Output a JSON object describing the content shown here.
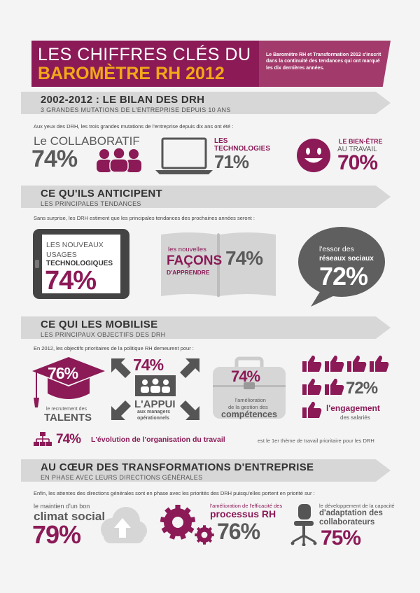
{
  "header": {
    "title_line1": "LES CHIFFRES CLÉS DU",
    "title_line2": "BAROMÈTRE RH 2012",
    "intro": "Le Baromètre RH et Transformation 2012 s'inscrit dans la continuité des tendances qui ont marqué les dix dernières années."
  },
  "bilan": {
    "title": "2002-2012 : LE BILAN DES DRH",
    "subtitle": "3 GRANDES MUTATIONS DE L'ENTREPRISE DEPUIS 10 ANS",
    "intro": "Aux yeux des DRH, les trois grandes mutations de l'entreprise depuis dix ans ont été :",
    "collab_label": "Le COLLABORATIF",
    "collab_value": "74%",
    "tech_label": "LES TECHNOLOGIES",
    "tech_value": "71%",
    "bienetre_label1": "LE BIEN-ÊTRE",
    "bienetre_label2": "AU TRAVAIL",
    "bienetre_value": "70%"
  },
  "anticipent": {
    "title": "CE QU'ILS ANTICIPENT",
    "subtitle": "LES PRINCIPALES TENDANCES",
    "intro": "Sans surprise, les DRH estiment que les principales tendances des prochaines années seront :",
    "usages_line1": "LES NOUVEAUX",
    "usages_line2": "USAGES",
    "usages_line3": "TECHNOLOGIQUES",
    "usages_value": "74%",
    "facons_line1": "les nouvelles",
    "facons_line2": "FAÇONS",
    "facons_line3": "D'APPRENDRE",
    "facons_value": "74%",
    "reseaux_line1": "l'essor des",
    "reseaux_line2": "réseaux sociaux",
    "reseaux_value": "72%"
  },
  "mobilise": {
    "title": "CE QUI LES MOBILISE",
    "subtitle": "LES PRINCIPAUX OBJECTIFS DES DRH",
    "intro": "En 2012, les objectifs prioritaires de la politique RH demeurent pour :",
    "talents_value": "76%",
    "talents_label1": "le recrutement des",
    "talents_label2": "TALENTS",
    "appui_value": "74%",
    "appui_label": "L'APPUI",
    "appui_sub1": "aux managers",
    "appui_sub2": "opérationnels",
    "comp_value": "74%",
    "comp_label1": "l'amélioration",
    "comp_label2": "de la gestion des",
    "comp_label3": "compétences",
    "engagement_value": "72%",
    "engagement_label": "l'engagement",
    "engagement_sub": "des salariés",
    "orga_value": "74%",
    "orga_label": "L'évolution de l'organisation du travail",
    "orga_rest": "est le 1er thème de travail prioritaire pour les DRH"
  },
  "coeur": {
    "title": "AU CŒUR DES TRANSFORMATIONS D'ENTREPRISE",
    "subtitle": "EN PHASE AVEC LEURS DIRECTIONS GÉNÉRALES",
    "intro": "Enfin, les attentes des directions générales sont en phase avec les priorités des DRH puisqu'elles portent en priorité sur :",
    "climat_label1": "le maintien d'un bon",
    "climat_label2": "climat social",
    "climat_value": "79%",
    "process_label1": "l'amélioration de l'efficacité des",
    "process_label2": "processus RH",
    "process_value": "76%",
    "adapt_label1": "le développement de la capacité",
    "adapt_label2": "d'adaptation des",
    "adapt_label3": "collaborateurs",
    "adapt_value": "75%"
  }
}
